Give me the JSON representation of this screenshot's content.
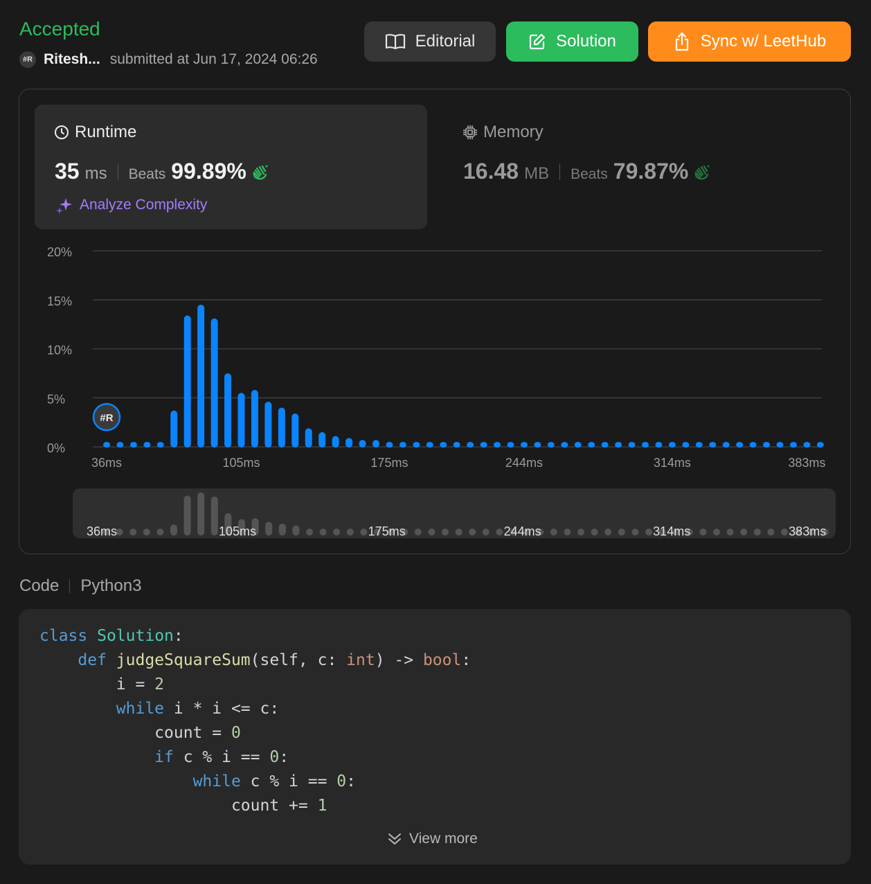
{
  "header": {
    "status": "Accepted",
    "avatar_text": "#R",
    "username": "Ritesh...",
    "submitted": "submitted at Jun 17, 2024 06:26",
    "editorial_label": "Editorial",
    "solution_label": "Solution",
    "sync_label": "Sync w/ LeetHub"
  },
  "runtime": {
    "title": "Runtime",
    "value": "35",
    "unit": "ms",
    "beats_label": "Beats",
    "beats": "99.89%",
    "analyze_label": "Analyze Complexity"
  },
  "memory": {
    "title": "Memory",
    "value": "16.48",
    "unit": "MB",
    "beats_label": "Beats",
    "beats": "79.87%"
  },
  "chart_data": {
    "type": "bar",
    "x_tick_labels": [
      "36ms",
      "105ms",
      "175ms",
      "244ms",
      "314ms",
      "383ms"
    ],
    "y_tick_labels": [
      "20%",
      "15%",
      "10%",
      "5%",
      "0%"
    ],
    "ylim": [
      0,
      20
    ],
    "grid": true,
    "marker_text": "#R",
    "bar_color": "#0a84ff",
    "values": [
      0.5,
      0.5,
      0.5,
      0.5,
      0.5,
      3.7,
      13.4,
      14.5,
      13.1,
      7.5,
      5.5,
      5.8,
      4.6,
      4.0,
      3.4,
      1.9,
      1.5,
      1.1,
      0.9,
      0.7,
      0.7,
      0.5,
      0.5,
      0.5,
      0.5,
      0.5,
      0.5,
      0.5,
      0.5,
      0.5,
      0.5,
      0.5,
      0.5,
      0.5,
      0.5,
      0.5,
      0.5,
      0.5,
      0.5,
      0.5,
      0.5,
      0.5,
      0.5,
      0.5,
      0.5,
      0.5,
      0.5,
      0.5,
      0.5,
      0.5,
      0.5,
      0.5,
      0.5,
      0.5
    ]
  },
  "code": {
    "label": "Code",
    "language": "Python3",
    "view_more": "View more"
  }
}
